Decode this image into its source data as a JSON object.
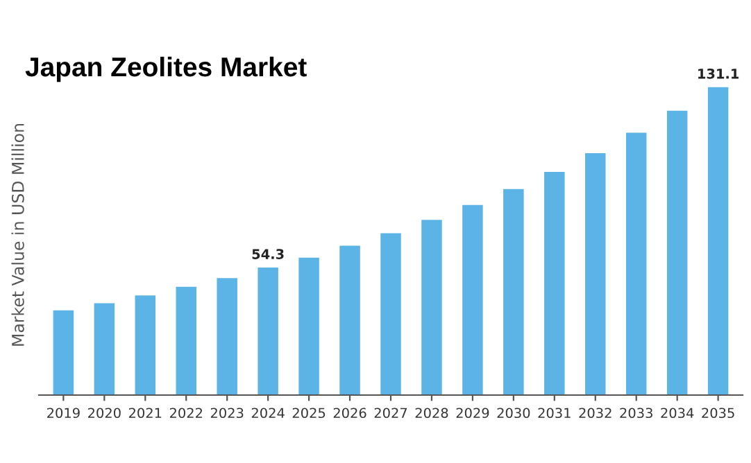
{
  "chart_data": {
    "type": "bar",
    "title": "Japan Zeolites Market",
    "ylabel": "Market Value in USD Million",
    "categories": [
      "2019",
      "2020",
      "2021",
      "2022",
      "2023",
      "2024",
      "2025",
      "2026",
      "2027",
      "2028",
      "2029",
      "2030",
      "2031",
      "2032",
      "2033",
      "2034",
      "2035"
    ],
    "values": [
      36.1,
      39.1,
      42.4,
      46.1,
      49.8,
      54.3,
      58.5,
      63.6,
      68.9,
      74.6,
      80.9,
      87.7,
      95.0,
      103.0,
      111.7,
      121.1,
      131.1
    ],
    "value_labels": [
      null,
      null,
      null,
      null,
      null,
      "54.3",
      null,
      null,
      null,
      null,
      null,
      null,
      null,
      null,
      null,
      null,
      "131.1"
    ],
    "color": "#5bb3e6",
    "grid": false,
    "legend": false
  }
}
